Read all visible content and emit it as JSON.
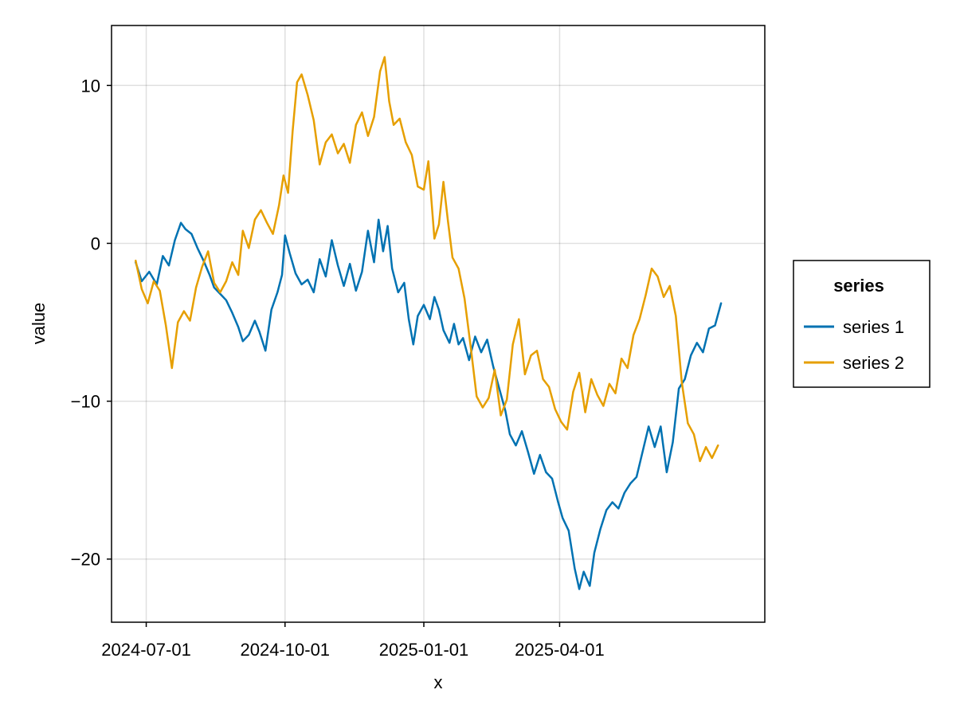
{
  "chart_data": {
    "type": "line",
    "xlabel": "x",
    "ylabel": "value",
    "x_range": [
      "2024-06-08",
      "2025-08-15"
    ],
    "ylim": [
      -24,
      13.8
    ],
    "x_ticks": [
      "2024-07-01",
      "2024-10-01",
      "2025-01-01",
      "2025-04-01"
    ],
    "y_ticks": [
      10,
      0,
      -10,
      -20
    ],
    "y_tick_labels": [
      "10",
      "0",
      "−10",
      "−20"
    ],
    "grid": true,
    "legend": {
      "title": "series",
      "placement": "right"
    },
    "series": [
      {
        "name": "series 1",
        "color": "#0072b2",
        "points": [
          [
            "2024-06-24",
            -1.2
          ],
          [
            "2024-06-28",
            -2.4
          ],
          [
            "2024-07-03",
            -1.8
          ],
          [
            "2024-07-08",
            -2.6
          ],
          [
            "2024-07-12",
            -0.8
          ],
          [
            "2024-07-16",
            -1.4
          ],
          [
            "2024-07-20",
            0.2
          ],
          [
            "2024-07-24",
            1.3
          ],
          [
            "2024-07-27",
            0.9
          ],
          [
            "2024-07-31",
            0.6
          ],
          [
            "2024-08-04",
            -0.3
          ],
          [
            "2024-08-08",
            -1.1
          ],
          [
            "2024-08-12",
            -2.0
          ],
          [
            "2024-08-15",
            -2.8
          ],
          [
            "2024-08-19",
            -3.2
          ],
          [
            "2024-08-23",
            -3.6
          ],
          [
            "2024-08-27",
            -4.4
          ],
          [
            "2024-08-31",
            -5.3
          ],
          [
            "2024-09-03",
            -6.2
          ],
          [
            "2024-09-07",
            -5.8
          ],
          [
            "2024-09-11",
            -4.9
          ],
          [
            "2024-09-14",
            -5.6
          ],
          [
            "2024-09-18",
            -6.8
          ],
          [
            "2024-09-22",
            -4.2
          ],
          [
            "2024-09-26",
            -3.1
          ],
          [
            "2024-09-29",
            -2.0
          ],
          [
            "2024-10-01",
            0.5
          ],
          [
            "2024-10-04",
            -0.6
          ],
          [
            "2024-10-08",
            -1.9
          ],
          [
            "2024-10-12",
            -2.6
          ],
          [
            "2024-10-16",
            -2.3
          ],
          [
            "2024-10-20",
            -3.1
          ],
          [
            "2024-10-24",
            -1.0
          ],
          [
            "2024-10-28",
            -2.1
          ],
          [
            "2024-11-01",
            0.2
          ],
          [
            "2024-11-05",
            -1.4
          ],
          [
            "2024-11-09",
            -2.7
          ],
          [
            "2024-11-13",
            -1.3
          ],
          [
            "2024-11-17",
            -3.0
          ],
          [
            "2024-11-21",
            -1.8
          ],
          [
            "2024-11-25",
            0.8
          ],
          [
            "2024-11-29",
            -1.2
          ],
          [
            "2024-12-02",
            1.5
          ],
          [
            "2024-12-05",
            -0.5
          ],
          [
            "2024-12-08",
            1.1
          ],
          [
            "2024-12-11",
            -1.6
          ],
          [
            "2024-12-15",
            -3.1
          ],
          [
            "2024-12-19",
            -2.5
          ],
          [
            "2024-12-22",
            -4.8
          ],
          [
            "2024-12-25",
            -6.4
          ],
          [
            "2024-12-28",
            -4.6
          ],
          [
            "2025-01-01",
            -3.9
          ],
          [
            "2025-01-05",
            -4.8
          ],
          [
            "2025-01-08",
            -3.4
          ],
          [
            "2025-01-11",
            -4.2
          ],
          [
            "2025-01-14",
            -5.5
          ],
          [
            "2025-01-18",
            -6.3
          ],
          [
            "2025-01-21",
            -5.1
          ],
          [
            "2025-01-24",
            -6.4
          ],
          [
            "2025-01-27",
            -6.0
          ],
          [
            "2025-01-31",
            -7.4
          ],
          [
            "2025-02-04",
            -5.9
          ],
          [
            "2025-02-08",
            -6.9
          ],
          [
            "2025-02-12",
            -6.1
          ],
          [
            "2025-02-16",
            -7.8
          ],
          [
            "2025-02-20",
            -9.2
          ],
          [
            "2025-02-24",
            -10.6
          ],
          [
            "2025-02-27",
            -12.1
          ],
          [
            "2025-03-03",
            -12.8
          ],
          [
            "2025-03-07",
            -11.9
          ],
          [
            "2025-03-11",
            -13.2
          ],
          [
            "2025-03-15",
            -14.6
          ],
          [
            "2025-03-19",
            -13.4
          ],
          [
            "2025-03-23",
            -14.5
          ],
          [
            "2025-03-27",
            -14.9
          ],
          [
            "2025-03-31",
            -16.4
          ],
          [
            "2025-04-03",
            -17.4
          ],
          [
            "2025-04-07",
            -18.2
          ],
          [
            "2025-04-11",
            -20.6
          ],
          [
            "2025-04-14",
            -21.9
          ],
          [
            "2025-04-17",
            -20.8
          ],
          [
            "2025-04-21",
            -21.7
          ],
          [
            "2025-04-24",
            -19.6
          ],
          [
            "2025-04-28",
            -18.1
          ],
          [
            "2025-05-02",
            -16.9
          ],
          [
            "2025-05-06",
            -16.4
          ],
          [
            "2025-05-10",
            -16.8
          ],
          [
            "2025-05-14",
            -15.8
          ],
          [
            "2025-05-18",
            -15.2
          ],
          [
            "2025-05-22",
            -14.8
          ],
          [
            "2025-05-26",
            -13.2
          ],
          [
            "2025-05-30",
            -11.6
          ],
          [
            "2025-06-03",
            -12.9
          ],
          [
            "2025-06-07",
            -11.6
          ],
          [
            "2025-06-11",
            -14.5
          ],
          [
            "2025-06-15",
            -12.6
          ],
          [
            "2025-06-19",
            -9.2
          ],
          [
            "2025-06-23",
            -8.6
          ],
          [
            "2025-06-27",
            -7.1
          ],
          [
            "2025-07-01",
            -6.3
          ],
          [
            "2025-07-05",
            -6.9
          ],
          [
            "2025-07-09",
            -5.4
          ],
          [
            "2025-07-13",
            -5.2
          ],
          [
            "2025-07-17",
            -3.8
          ]
        ]
      },
      {
        "name": "series 2",
        "color": "#e69f00",
        "points": [
          [
            "2024-06-24",
            -1.1
          ],
          [
            "2024-06-28",
            -2.9
          ],
          [
            "2024-07-02",
            -3.8
          ],
          [
            "2024-07-06",
            -2.4
          ],
          [
            "2024-07-10",
            -3.0
          ],
          [
            "2024-07-14",
            -5.2
          ],
          [
            "2024-07-18",
            -7.9
          ],
          [
            "2024-07-22",
            -5.0
          ],
          [
            "2024-07-26",
            -4.3
          ],
          [
            "2024-07-30",
            -4.9
          ],
          [
            "2024-08-03",
            -2.8
          ],
          [
            "2024-08-07",
            -1.5
          ],
          [
            "2024-08-11",
            -0.5
          ],
          [
            "2024-08-15",
            -2.5
          ],
          [
            "2024-08-19",
            -3.1
          ],
          [
            "2024-08-23",
            -2.4
          ],
          [
            "2024-08-27",
            -1.2
          ],
          [
            "2024-08-31",
            -2.0
          ],
          [
            "2024-09-03",
            0.8
          ],
          [
            "2024-09-07",
            -0.3
          ],
          [
            "2024-09-11",
            1.5
          ],
          [
            "2024-09-15",
            2.1
          ],
          [
            "2024-09-19",
            1.3
          ],
          [
            "2024-09-23",
            0.6
          ],
          [
            "2024-09-27",
            2.4
          ],
          [
            "2024-09-30",
            4.3
          ],
          [
            "2024-10-03",
            3.2
          ],
          [
            "2024-10-06",
            7.1
          ],
          [
            "2024-10-09",
            10.2
          ],
          [
            "2024-10-12",
            10.7
          ],
          [
            "2024-10-16",
            9.4
          ],
          [
            "2024-10-20",
            7.8
          ],
          [
            "2024-10-24",
            5.0
          ],
          [
            "2024-10-28",
            6.4
          ],
          [
            "2024-11-01",
            6.9
          ],
          [
            "2024-11-05",
            5.7
          ],
          [
            "2024-11-09",
            6.3
          ],
          [
            "2024-11-13",
            5.1
          ],
          [
            "2024-11-17",
            7.5
          ],
          [
            "2024-11-21",
            8.3
          ],
          [
            "2024-11-25",
            6.8
          ],
          [
            "2024-11-29",
            8.0
          ],
          [
            "2024-12-03",
            10.9
          ],
          [
            "2024-12-06",
            11.8
          ],
          [
            "2024-12-09",
            9.0
          ],
          [
            "2024-12-12",
            7.5
          ],
          [
            "2024-12-16",
            7.9
          ],
          [
            "2024-12-20",
            6.4
          ],
          [
            "2024-12-24",
            5.6
          ],
          [
            "2024-12-28",
            3.6
          ],
          [
            "2025-01-01",
            3.4
          ],
          [
            "2025-01-04",
            5.2
          ],
          [
            "2025-01-08",
            0.3
          ],
          [
            "2025-01-11",
            1.2
          ],
          [
            "2025-01-14",
            3.9
          ],
          [
            "2025-01-17",
            1.4
          ],
          [
            "2025-01-20",
            -0.9
          ],
          [
            "2025-01-24",
            -1.6
          ],
          [
            "2025-01-28",
            -3.5
          ],
          [
            "2025-02-01",
            -6.5
          ],
          [
            "2025-02-05",
            -9.7
          ],
          [
            "2025-02-09",
            -10.4
          ],
          [
            "2025-02-13",
            -9.8
          ],
          [
            "2025-02-17",
            -8.0
          ],
          [
            "2025-02-21",
            -10.9
          ],
          [
            "2025-02-25",
            -9.9
          ],
          [
            "2025-03-01",
            -6.4
          ],
          [
            "2025-03-05",
            -4.8
          ],
          [
            "2025-03-09",
            -8.3
          ],
          [
            "2025-03-13",
            -7.1
          ],
          [
            "2025-03-17",
            -6.8
          ],
          [
            "2025-03-21",
            -8.6
          ],
          [
            "2025-03-25",
            -9.1
          ],
          [
            "2025-03-29",
            -10.5
          ],
          [
            "2025-04-02",
            -11.3
          ],
          [
            "2025-04-06",
            -11.8
          ],
          [
            "2025-04-10",
            -9.4
          ],
          [
            "2025-04-14",
            -8.2
          ],
          [
            "2025-04-18",
            -10.7
          ],
          [
            "2025-04-22",
            -8.6
          ],
          [
            "2025-04-26",
            -9.6
          ],
          [
            "2025-04-30",
            -10.3
          ],
          [
            "2025-05-04",
            -8.9
          ],
          [
            "2025-05-08",
            -9.5
          ],
          [
            "2025-05-12",
            -7.3
          ],
          [
            "2025-05-16",
            -7.9
          ],
          [
            "2025-05-20",
            -5.8
          ],
          [
            "2025-05-24",
            -4.8
          ],
          [
            "2025-05-28",
            -3.3
          ],
          [
            "2025-06-01",
            -1.6
          ],
          [
            "2025-06-05",
            -2.1
          ],
          [
            "2025-06-09",
            -3.4
          ],
          [
            "2025-06-13",
            -2.7
          ],
          [
            "2025-06-17",
            -4.6
          ],
          [
            "2025-06-21",
            -8.8
          ],
          [
            "2025-06-25",
            -11.4
          ],
          [
            "2025-06-29",
            -12.1
          ],
          [
            "2025-07-03",
            -13.8
          ],
          [
            "2025-07-07",
            -12.9
          ],
          [
            "2025-07-11",
            -13.6
          ],
          [
            "2025-07-15",
            -12.8
          ]
        ]
      }
    ]
  }
}
